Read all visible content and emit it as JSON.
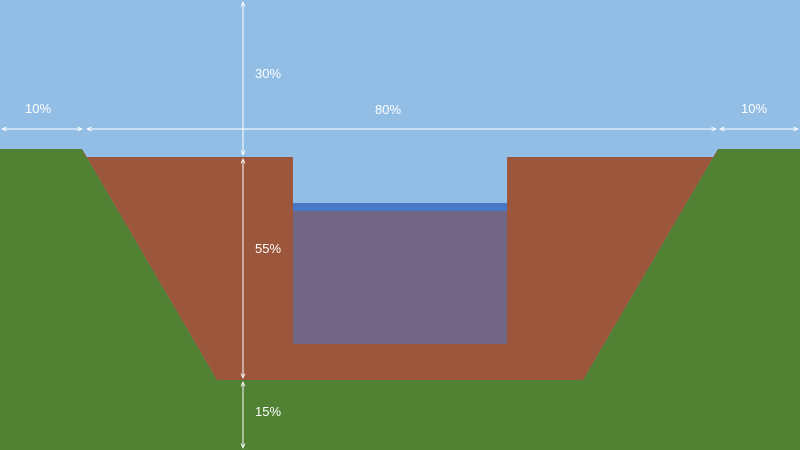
{
  "colors": {
    "sky": "#92bee5",
    "ground": "#518234",
    "soil": "#9c563c",
    "water_surface": "#4678c6",
    "water_body": "#736684",
    "dimension_line": "#ffffff"
  },
  "dimensions": {
    "left_margin": "10%",
    "center_width": "80%",
    "right_margin": "10%",
    "top_height": "30%",
    "middle_height": "55%",
    "bottom_height": "15%"
  }
}
